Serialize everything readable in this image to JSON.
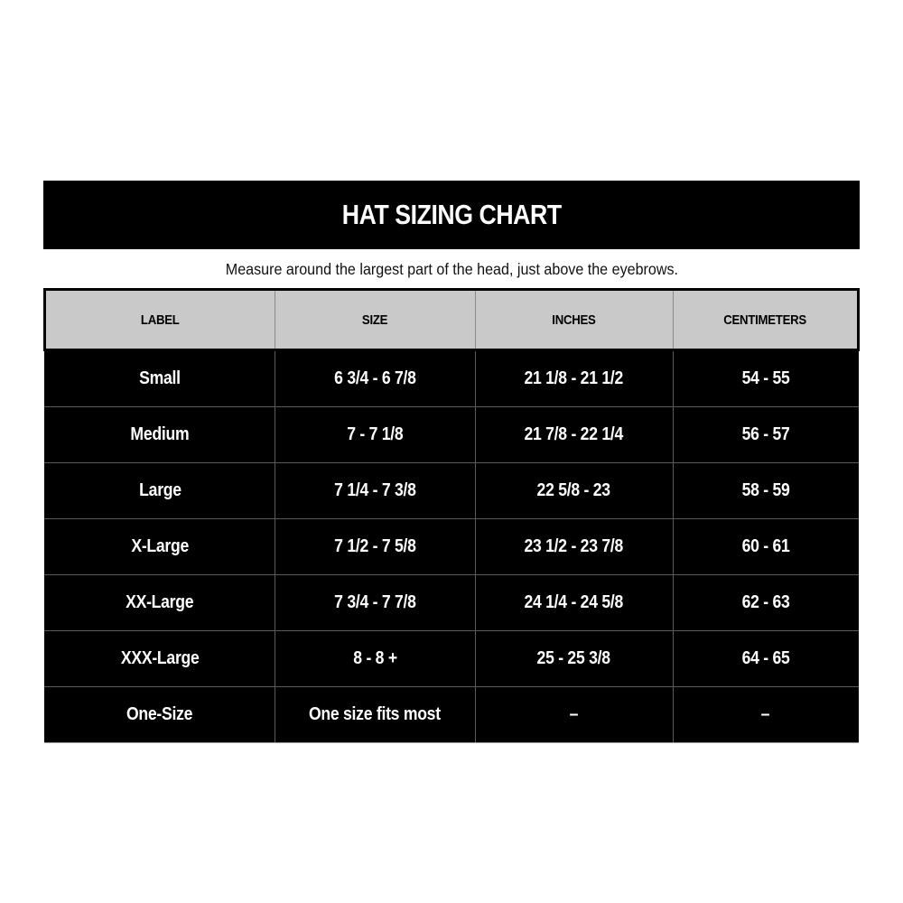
{
  "title": "HAT SIZING CHART",
  "subtitle": "Measure around the largest part of the head, just above the eyebrows.",
  "colors": {
    "banner_bg": "#000000",
    "banner_text": "#ffffff",
    "header_bg": "#c9c9c9",
    "header_text": "#000000",
    "row_bg": "#000000",
    "row_text": "#ffffff",
    "grid_line": "#5a5a5a",
    "page_bg": "#ffffff"
  },
  "chart_data": {
    "type": "table",
    "title": "HAT SIZING CHART",
    "columns": [
      "LABEL",
      "SIZE",
      "INCHES",
      "CENTIMETERS"
    ],
    "rows": [
      [
        "Small",
        "6 3/4 - 6 7/8",
        "21 1/8 - 21 1/2",
        "54 - 55"
      ],
      [
        "Medium",
        "7 - 7 1/8",
        "21 7/8 - 22 1/4",
        "56 - 57"
      ],
      [
        "Large",
        "7 1/4 - 7 3/8",
        "22 5/8 - 23",
        "58 - 59"
      ],
      [
        "X-Large",
        "7 1/2 - 7 5/8",
        "23 1/2 - 23 7/8",
        "60 - 61"
      ],
      [
        "XX-Large",
        "7 3/4 - 7 7/8",
        "24 1/4 - 24 5/8",
        "62 - 63"
      ],
      [
        "XXX-Large",
        "8 - 8 +",
        "25 - 25 3/8",
        "64 - 65"
      ],
      [
        "One-Size",
        "One size fits most",
        "–",
        "–"
      ]
    ]
  }
}
